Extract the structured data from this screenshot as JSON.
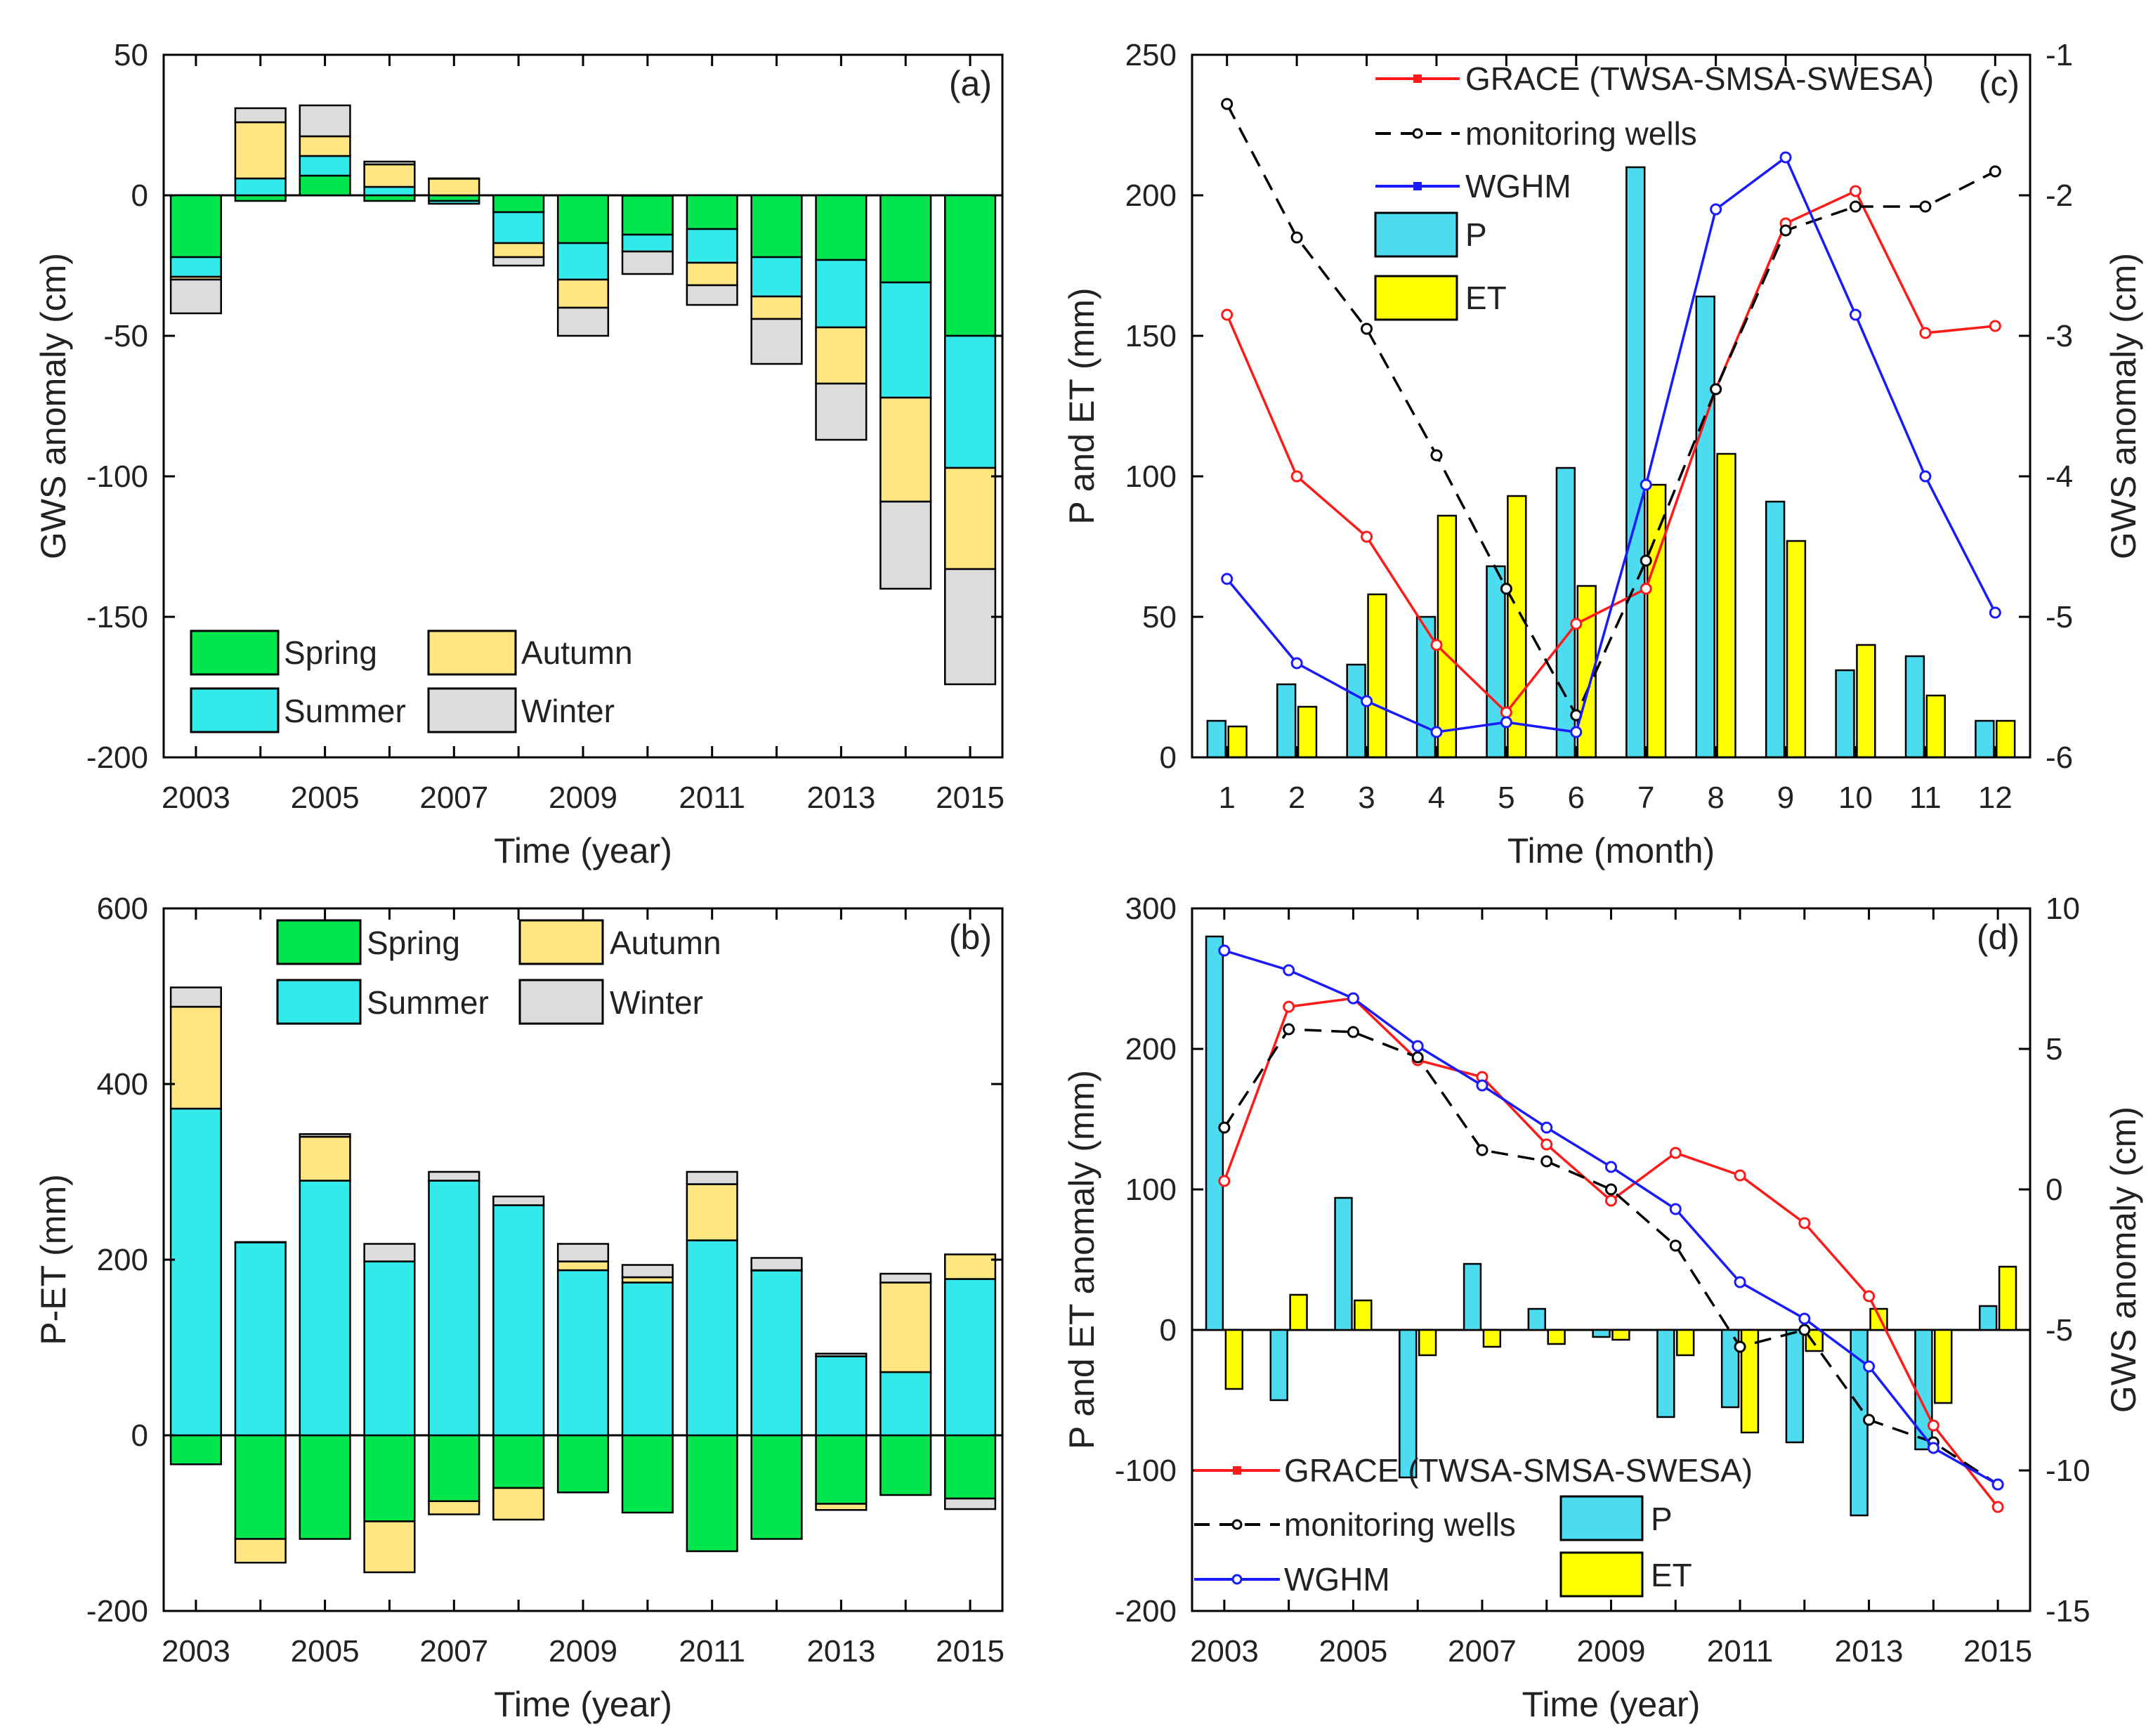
{
  "colors": {
    "spring": "#00e64d",
    "summer": "#33eaea",
    "autumn": "#ffe680",
    "winter": "#dcdcdc",
    "p": "#4ddbf0",
    "et": "#ffff00",
    "grace": "#ff1a1a",
    "wells": "#000000",
    "wghm": "#1a1aff"
  },
  "chart_data": [
    {
      "id": "a",
      "type": "bar",
      "stacked": true,
      "panel_label": "(a)",
      "xlabel": "Time (year)",
      "ylabel": "GWS anomaly (cm)",
      "ylim": [
        -200,
        50
      ],
      "yticks": [
        50,
        0,
        -50,
        -100,
        -150,
        -200
      ],
      "categories": [
        2003,
        2004,
        2005,
        2006,
        2007,
        2008,
        2009,
        2010,
        2011,
        2012,
        2013,
        2014,
        2015
      ],
      "xtick_labels": [
        "2003",
        "2005",
        "2007",
        "2009",
        "2011",
        "2013",
        "2015"
      ],
      "legend": [
        "Spring",
        "Autumn",
        "Summer",
        "Winter"
      ],
      "legend_position": "bottom-left",
      "series": [
        {
          "name": "Spring",
          "color_key": "spring",
          "values": [
            -22,
            -2,
            7,
            -2,
            -2,
            -6,
            -17,
            -14,
            -12,
            -22,
            -23,
            -31,
            -50
          ]
        },
        {
          "name": "Summer",
          "color_key": "summer",
          "values": [
            -7,
            6,
            7,
            3,
            -1,
            -11,
            -13,
            -6,
            -12,
            -14,
            -24,
            -41,
            -47
          ]
        },
        {
          "name": "Autumn",
          "color_key": "autumn",
          "values": [
            -1,
            20,
            7,
            8,
            6,
            -5,
            -10,
            0,
            -8,
            -8,
            -20,
            -37,
            -36
          ]
        },
        {
          "name": "Winter",
          "color_key": "winter",
          "values": [
            -12,
            5,
            11,
            1,
            0,
            -3,
            -10,
            -8,
            -7,
            -16,
            -20,
            -31,
            -41
          ]
        }
      ]
    },
    {
      "id": "b",
      "type": "bar",
      "stacked": true,
      "panel_label": "(b)",
      "xlabel": "Time (year)",
      "ylabel": "P-ET (mm)",
      "ylim": [
        -200,
        600
      ],
      "yticks": [
        600,
        400,
        200,
        0,
        -200
      ],
      "categories": [
        2003,
        2004,
        2005,
        2006,
        2007,
        2008,
        2009,
        2010,
        2011,
        2012,
        2013,
        2014,
        2015
      ],
      "xtick_labels": [
        "2003",
        "2005",
        "2007",
        "2009",
        "2011",
        "2013",
        "2015"
      ],
      "legend": [
        "Spring",
        "Autumn",
        "Summer",
        "Winter"
      ],
      "legend_position": "top",
      "series": [
        {
          "name": "Spring",
          "color_key": "spring",
          "values": [
            -33,
            -118,
            -118,
            -98,
            -75,
            -60,
            -65,
            -88,
            -132,
            -118,
            -78,
            -68,
            -72
          ]
        },
        {
          "name": "Summer",
          "color_key": "summer",
          "values": [
            372,
            220,
            290,
            198,
            290,
            262,
            188,
            174,
            222,
            188,
            90,
            72,
            178
          ]
        },
        {
          "name": "Autumn",
          "color_key": "autumn",
          "values": [
            116,
            -27,
            50,
            -58,
            -15,
            -36,
            10,
            6,
            64,
            0,
            -7,
            102,
            28
          ]
        },
        {
          "name": "Winter",
          "color_key": "winter",
          "values": [
            22,
            0,
            3,
            20,
            10,
            10,
            20,
            14,
            14,
            14,
            3,
            10,
            -12
          ]
        }
      ]
    },
    {
      "id": "c",
      "type": "bar+line",
      "panel_label": "(c)",
      "xlabel": "Time (month)",
      "ylabel": "P and ET (mm)",
      "ylabel_right": "GWS anomaly (cm)",
      "ylim": [
        0,
        250
      ],
      "ylim_right": [
        -6,
        -1
      ],
      "yticks": [
        0,
        50,
        100,
        150,
        200,
        250
      ],
      "yticks_right": [
        -6,
        -5,
        -4,
        -3,
        -2,
        -1
      ],
      "categories": [
        1,
        2,
        3,
        4,
        5,
        6,
        7,
        8,
        9,
        10,
        11,
        12
      ],
      "legend": [
        "GRACE (TWSA-SMSA-SWESA)",
        "monitoring wells",
        "WGHM",
        "P",
        "ET"
      ],
      "legend_position": "top-center",
      "bars": [
        {
          "name": "P",
          "color_key": "p",
          "values": [
            13,
            26,
            33,
            50,
            68,
            103,
            210,
            164,
            91,
            31,
            36,
            13
          ]
        },
        {
          "name": "ET",
          "color_key": "et",
          "values": [
            11,
            18,
            58,
            86,
            93,
            61,
            97,
            108,
            77,
            40,
            22,
            13
          ]
        }
      ],
      "lines": [
        {
          "name": "GRACE (TWSA-SMSA-SWESA)",
          "color_key": "grace",
          "style": "solid",
          "values": [
            -2.85,
            -4.0,
            -4.43,
            -5.2,
            -5.68,
            -5.05,
            -4.8,
            -3.38,
            -2.2,
            -1.97,
            -2.98,
            -2.93
          ]
        },
        {
          "name": "monitoring wells",
          "color_key": "wells",
          "style": "dashed",
          "values": [
            -1.35,
            -2.3,
            -2.95,
            -3.85,
            -4.8,
            -5.7,
            -4.6,
            -3.38,
            -2.25,
            -2.08,
            -2.08,
            -1.83
          ]
        },
        {
          "name": "WGHM",
          "color_key": "wghm",
          "style": "solid",
          "values": [
            -4.73,
            -5.33,
            -5.6,
            -5.82,
            -5.75,
            -5.82,
            -4.06,
            -2.1,
            -1.73,
            -2.85,
            -4.0,
            -4.97
          ]
        }
      ]
    },
    {
      "id": "d",
      "type": "bar+line",
      "panel_label": "(d)",
      "xlabel": "Time (year)",
      "ylabel": "P and ET anomaly (mm)",
      "ylabel_right": "GWS anomaly (cm)",
      "ylim": [
        -200,
        300
      ],
      "ylim_right": [
        -15,
        10
      ],
      "yticks": [
        300,
        200,
        100,
        0,
        -100,
        -200
      ],
      "yticks_right": [
        10,
        5,
        0,
        -5,
        -10,
        -15
      ],
      "categories": [
        2003,
        2004,
        2005,
        2006,
        2007,
        2008,
        2009,
        2010,
        2011,
        2012,
        2013,
        2014,
        2015
      ],
      "xtick_labels": [
        "2003",
        "2005",
        "2007",
        "2009",
        "2011",
        "2013",
        "2015"
      ],
      "legend": [
        "GRACE (TWSA-SMSA-SWESA)",
        "monitoring wells",
        "WGHM",
        "P",
        "ET"
      ],
      "legend_position": "bottom-left",
      "bars": [
        {
          "name": "P",
          "color_key": "p",
          "values": [
            280,
            -50,
            94,
            -105,
            47,
            15,
            -5,
            -62,
            -55,
            -80,
            -132,
            -85,
            17
          ]
        },
        {
          "name": "ET",
          "color_key": "et",
          "values": [
            -42,
            25,
            21,
            -18,
            -12,
            -10,
            -7,
            -18,
            -73,
            -15,
            15,
            -52,
            45
          ]
        }
      ],
      "lines": [
        {
          "name": "GRACE (TWSA-SMSA-SWESA)",
          "color_key": "grace",
          "style": "solid",
          "values": [
            0.3,
            6.5,
            6.8,
            4.6,
            4.0,
            1.6,
            -0.4,
            1.3,
            0.5,
            -1.2,
            -3.8,
            -8.4,
            -11.3
          ]
        },
        {
          "name": "monitoring wells",
          "color_key": "wells",
          "style": "dashed",
          "values": [
            2.2,
            5.7,
            5.6,
            4.7,
            1.4,
            1.0,
            0.0,
            -2.0,
            -5.6,
            -5.0,
            -8.2,
            -9.0,
            -10.5
          ]
        },
        {
          "name": "WGHM",
          "color_key": "wghm",
          "style": "solid",
          "values": [
            8.5,
            7.8,
            6.8,
            5.1,
            3.7,
            2.2,
            0.8,
            -0.7,
            -3.3,
            -4.6,
            -6.3,
            -9.2,
            -10.5
          ]
        }
      ]
    }
  ]
}
